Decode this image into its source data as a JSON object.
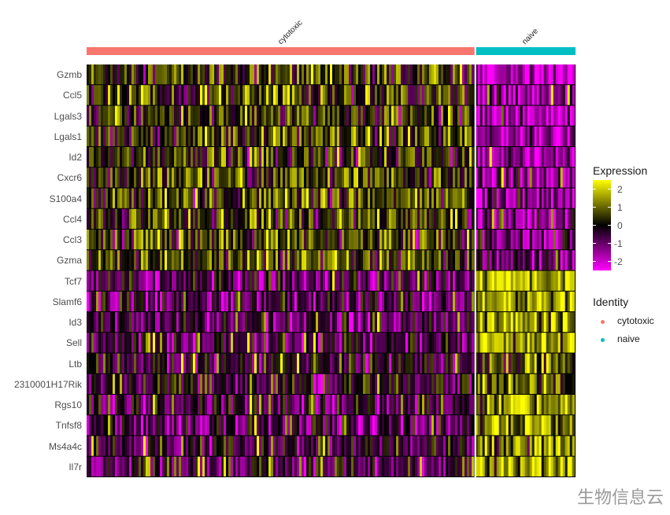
{
  "chart_data": {
    "type": "heatmap",
    "title": "",
    "genes": [
      "Gzmb",
      "Ccl5",
      "Lgals3",
      "Lgals1",
      "Id2",
      "Cxcr6",
      "S100a4",
      "Ccl4",
      "Ccl3",
      "Gzma",
      "Tcf7",
      "Slamf6",
      "Id3",
      "Sell",
      "Ltb",
      "2310001H17Rik",
      "Rgs10",
      "Tnfsf8",
      "Ms4a4c",
      "Il7r"
    ],
    "groups": [
      {
        "name": "cytotoxic",
        "color": "#F8766D",
        "cell_fraction": 0.795
      },
      {
        "name": "naive",
        "color": "#00BFC4",
        "cell_fraction": 0.205
      }
    ],
    "mean_expression": {
      "cytotoxic": [
        0.5,
        0.6,
        0.4,
        0.4,
        0.4,
        0.5,
        0.5,
        0.5,
        0.5,
        0.4,
        -0.8,
        -0.7,
        -0.6,
        -0.6,
        -0.2,
        -0.3,
        -0.6,
        -0.6,
        -0.6,
        -0.6
      ],
      "naive": [
        -2.0,
        -1.6,
        -1.6,
        -1.5,
        -1.4,
        -1.3,
        -1.5,
        -1.1,
        -1.1,
        -1.2,
        1.8,
        1.4,
        1.5,
        1.4,
        0.8,
        1.0,
        1.5,
        1.4,
        1.4,
        1.6
      ]
    },
    "color_scale": {
      "low": "#FF00FF",
      "mid": "#000000",
      "high": "#FFFF00",
      "limits": [
        -2.5,
        2.5
      ]
    },
    "legend": {
      "expression_title": "Expression",
      "expression_ticks": [
        "2",
        "1",
        "0",
        "-1",
        "-2"
      ],
      "identity_title": "Identity"
    }
  },
  "watermark": "生物信息云"
}
